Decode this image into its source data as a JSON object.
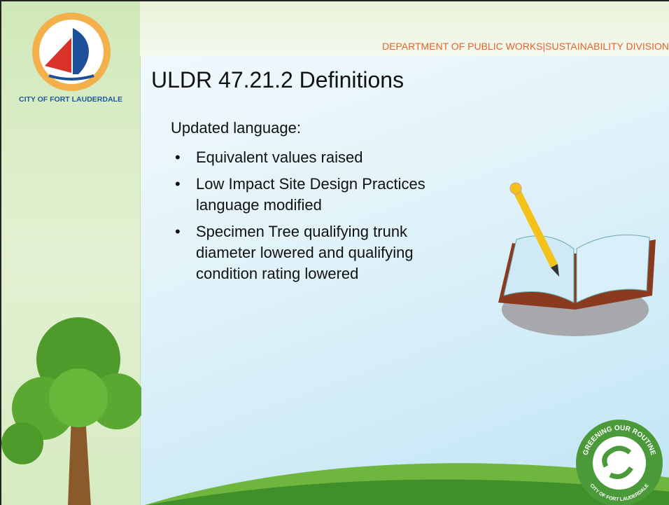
{
  "header": {
    "department": "DEPARTMENT OF PUBLIC WORKS|SUSTAINABILITY DIVISION",
    "city": "CITY OF FORT LAUDERDALE"
  },
  "slide": {
    "title": "ULDR 47.21.2 Definitions",
    "intro": "Updated language:",
    "bullets": [
      "Equivalent values raised",
      "Low Impact Site Design Practices language modified",
      "Specimen Tree qualifying trunk diameter lowered and qualifying condition rating lowered"
    ]
  },
  "badge": {
    "top": "GREENING OUR ROUTINE",
    "bottom": "CITY OF FORT LAUDERDALE"
  }
}
